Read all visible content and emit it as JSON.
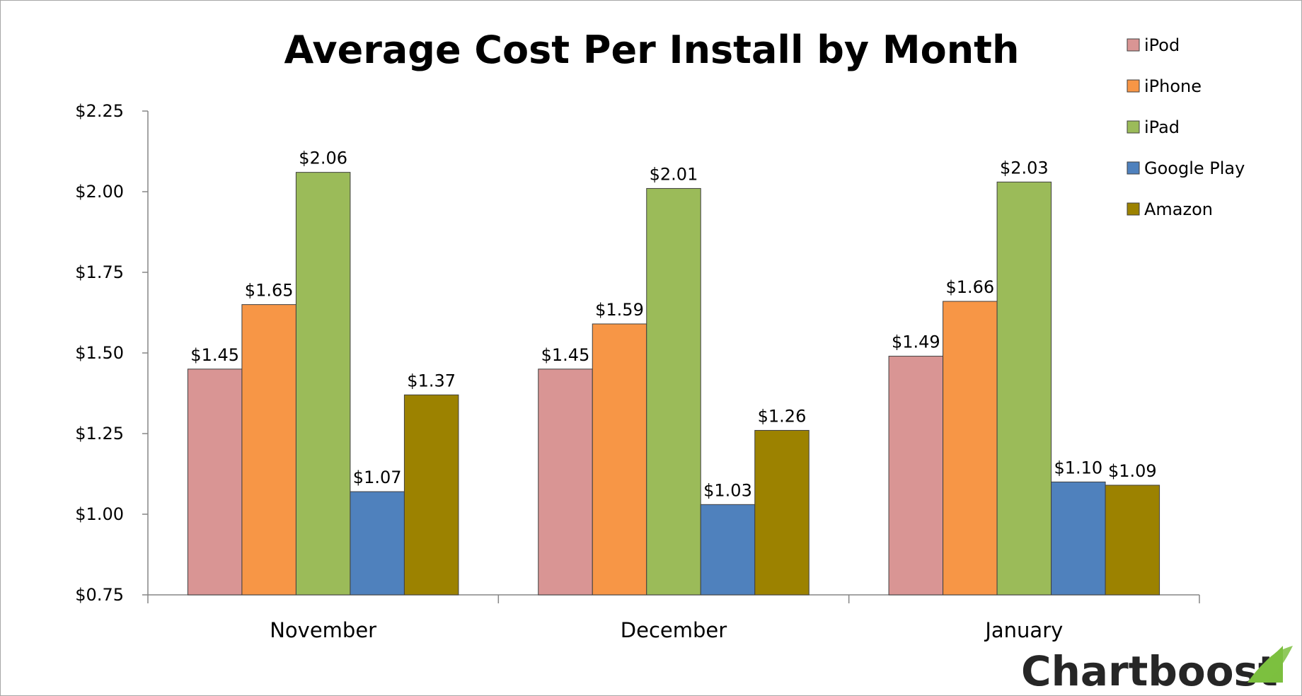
{
  "brand": {
    "name": "Chartboost",
    "logo_color": "#7cbf3f"
  },
  "chart_data": {
    "type": "bar",
    "title": "Average Cost Per Install by Month",
    "xlabel": "",
    "ylabel": "",
    "categories": [
      "November",
      "December",
      "January"
    ],
    "ylim": [
      0.75,
      2.25
    ],
    "yticks": [
      "$0.75",
      "$1.00",
      "$1.25",
      "$1.50",
      "$1.75",
      "$2.00",
      "$2.25"
    ],
    "ytick_values": [
      0.75,
      1.0,
      1.25,
      1.5,
      1.75,
      2.0,
      2.25
    ],
    "grid": false,
    "legend_position": "top-right",
    "series": [
      {
        "name": "iPod",
        "color": "#d99594",
        "values": [
          1.45,
          1.45,
          1.49
        ],
        "labels": [
          "$1.45",
          "$1.45",
          "$1.49"
        ]
      },
      {
        "name": "iPhone",
        "color": "#f79646",
        "values": [
          1.65,
          1.59,
          1.66
        ],
        "labels": [
          "$1.65",
          "$1.59",
          "$1.66"
        ]
      },
      {
        "name": "iPad",
        "color": "#9bbb59",
        "values": [
          2.06,
          2.01,
          2.03
        ],
        "labels": [
          "$2.06",
          "$2.01",
          "$2.03"
        ]
      },
      {
        "name": "Google Play",
        "color": "#4f81bd",
        "values": [
          1.07,
          1.03,
          1.1
        ],
        "labels": [
          "$1.07",
          "$1.03",
          "$1.10"
        ]
      },
      {
        "name": "Amazon",
        "color": "#9c8200",
        "values": [
          1.37,
          1.26,
          1.09
        ],
        "labels": [
          "$1.37",
          "$1.26",
          "$1.09"
        ]
      }
    ]
  }
}
